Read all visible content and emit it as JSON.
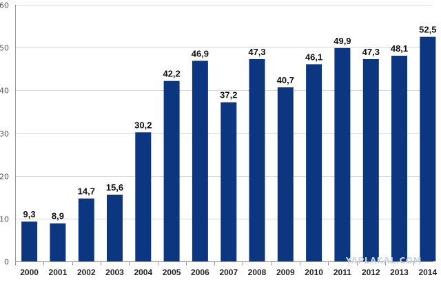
{
  "chart_data": {
    "type": "bar",
    "title": "",
    "xlabel": "",
    "ylabel": "",
    "categories": [
      "2000",
      "2001",
      "2002",
      "2003",
      "2004",
      "2005",
      "2006",
      "2007",
      "2008",
      "2009",
      "2010",
      "2011",
      "2012",
      "2013",
      "2014"
    ],
    "values": [
      9.3,
      8.9,
      14.7,
      15.6,
      30.2,
      42.2,
      46.9,
      37.2,
      47.3,
      40.7,
      46.1,
      49.9,
      47.3,
      48.1,
      52.5
    ],
    "value_labels": [
      "9,3",
      "8,9",
      "14,7",
      "15,6",
      "30,2",
      "42,2",
      "46,9",
      "37,2",
      "47,3",
      "40,7",
      "46,1",
      "49,9",
      "47,3",
      "48,1",
      "52,5"
    ],
    "ylim": [
      0,
      60
    ],
    "yticks": [
      0,
      10,
      20,
      30,
      40,
      50,
      60
    ],
    "grid": true,
    "legend": "none",
    "bar_color": "#0c3680",
    "grid_color": "#d8d8d8"
  },
  "watermark": "YAPLAKAL.COM"
}
